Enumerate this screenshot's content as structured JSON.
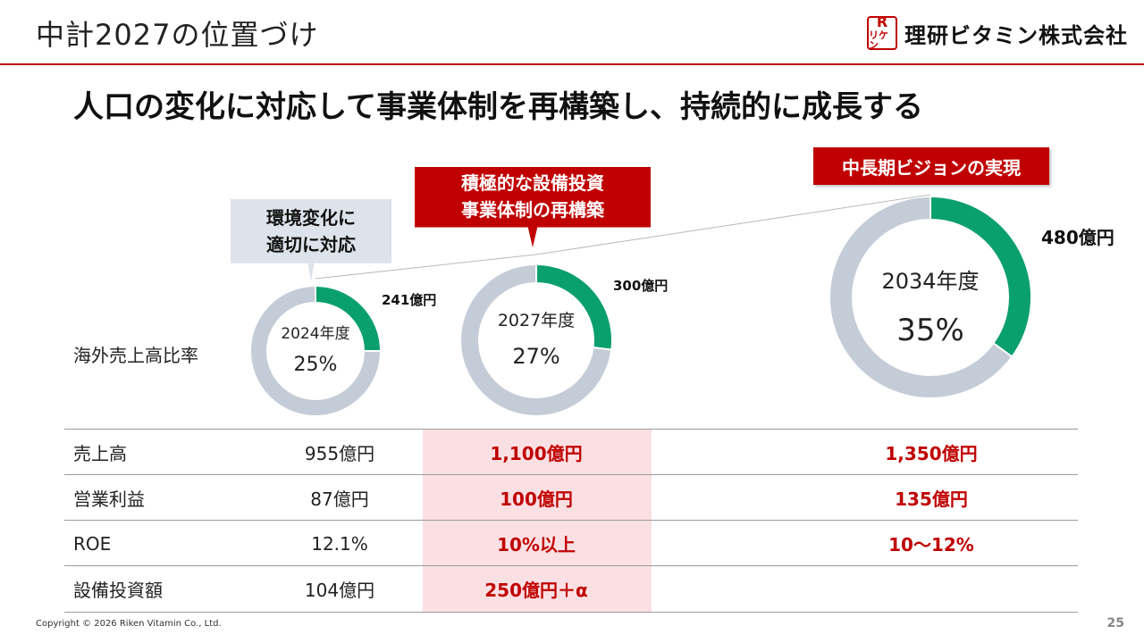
{
  "header": {
    "title": "中計2027の位置づけ",
    "logo_mark": "リケン",
    "logo_text": "理研ビタミン株式会社"
  },
  "main_heading": "人口の変化に対応して事業体制を再構築し、持続的に成長する",
  "callouts": {
    "gray": [
      "環境変化に",
      "適切に対応"
    ],
    "red": [
      "積極的な設備投資",
      "事業体制の再構築"
    ],
    "vision": "中長期ビジョンの実現"
  },
  "overseas_ratio_label": "海外売上高比率",
  "chart_data": {
    "type": "pie",
    "charts": [
      {
        "year_label": "2024年度",
        "overseas_pct": 25,
        "pct_label": "25%",
        "overseas_amount": "241億円"
      },
      {
        "year_label": "2027年度",
        "overseas_pct": 27,
        "pct_label": "27%",
        "overseas_amount": "300億円"
      },
      {
        "year_label": "2034年度",
        "overseas_pct": 35,
        "pct_label": "35%",
        "overseas_amount": "480億円"
      }
    ],
    "colors": {
      "overseas": "#0aa06e",
      "domestic": "#c3ccd7"
    }
  },
  "table": {
    "rows": [
      {
        "label": "売上高",
        "y2024": "955億円",
        "y2027": "1,100億円",
        "y2034": "1,350億円"
      },
      {
        "label": "営業利益",
        "y2024": "87億円",
        "y2027": "100億円",
        "y2034": "135億円"
      },
      {
        "label": "ROE",
        "y2024": "12.1%",
        "y2027": "10%以上",
        "y2034": "10～12%"
      },
      {
        "label": "設備投資額",
        "y2024": "104億円",
        "y2027": "250億円＋α",
        "y2034": ""
      }
    ]
  },
  "colors": {
    "accent_red": "#c00000",
    "highlight_pink": "#fbe0e3",
    "callout_gray": "#dde3ea"
  },
  "footer": {
    "copyright": "Copyright © 2026 Riken Vitamin Co., Ltd.",
    "page_number": "25"
  }
}
